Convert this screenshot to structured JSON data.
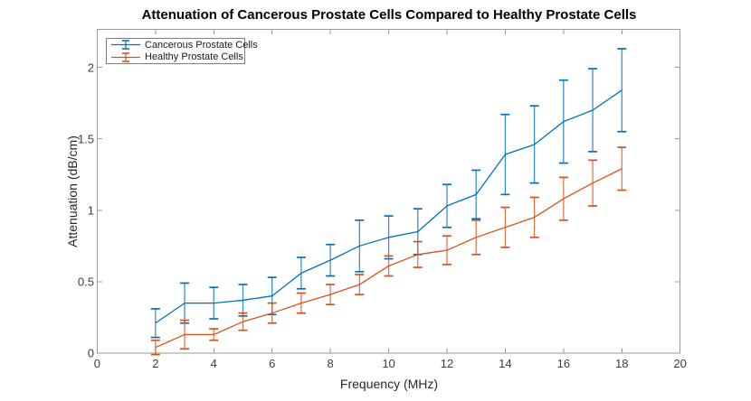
{
  "chart_data": {
    "type": "line",
    "subtype": "errorbar",
    "title": "Attenuation of Cancerous Prostate Cells Compared to Healthy Prostate Cells",
    "xlabel": "Frequency (MHz)",
    "ylabel": "Attenuation (dB/cm)",
    "xlim": [
      0,
      20
    ],
    "ylim": [
      0,
      2.26
    ],
    "xticks": [
      0,
      2,
      4,
      6,
      8,
      10,
      12,
      14,
      16,
      18,
      20
    ],
    "yticks": [
      0,
      0.5,
      1,
      1.5,
      2
    ],
    "ytick_labels": [
      "0",
      "0.5",
      "1",
      "1.5",
      "2"
    ],
    "grid": false,
    "box": true,
    "legend_position": "top-left",
    "x": [
      2,
      3,
      4,
      5,
      6,
      7,
      8,
      9,
      10,
      11,
      12,
      13,
      14,
      15,
      16,
      17,
      18
    ],
    "series": [
      {
        "name": "Cancerous Prostate Cells",
        "color": "#0072BD",
        "values": [
          0.21,
          0.35,
          0.35,
          0.37,
          0.4,
          0.56,
          0.65,
          0.75,
          0.81,
          0.85,
          1.03,
          1.11,
          1.39,
          1.46,
          1.62,
          1.7,
          1.84
        ],
        "errors": [
          0.1,
          0.14,
          0.11,
          0.11,
          0.13,
          0.11,
          0.11,
          0.18,
          0.15,
          0.16,
          0.15,
          0.17,
          0.28,
          0.27,
          0.29,
          0.29,
          0.29
        ]
      },
      {
        "name": "Healthy Prostate Cells",
        "color": "#D95319",
        "values": [
          0.04,
          0.13,
          0.13,
          0.22,
          0.28,
          0.35,
          0.41,
          0.48,
          0.61,
          0.69,
          0.72,
          0.81,
          0.88,
          0.95,
          1.08,
          1.19,
          1.29
        ],
        "errors": [
          0.05,
          0.1,
          0.04,
          0.06,
          0.07,
          0.07,
          0.07,
          0.07,
          0.07,
          0.09,
          0.1,
          0.12,
          0.14,
          0.14,
          0.15,
          0.16,
          0.15
        ]
      }
    ],
    "axis_color": "#9a9a9a"
  }
}
